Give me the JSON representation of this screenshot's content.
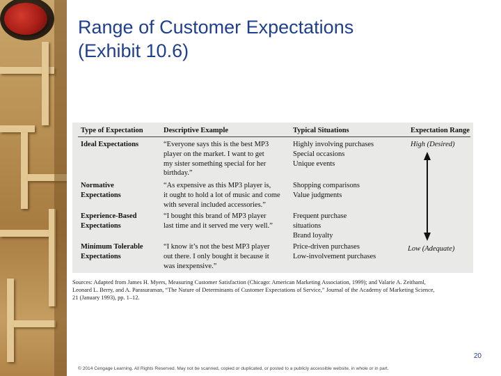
{
  "slide": {
    "title_line1": "Range of Customer Expectations",
    "title_line2": "(Exhibit 10.6)",
    "page_number": "20",
    "footer": "© 2014 Cengage Learning. All Rights Reserved. May not be scanned, copied or duplicated, or posted to a publicly accessible website, in whole or in part."
  },
  "exhibit": {
    "headers": [
      "Type of Expectation",
      "Descriptive Example",
      "Typical Situations",
      "Expectation Range"
    ],
    "rows": [
      {
        "type": [
          "Ideal Expectations"
        ],
        "example": [
          "“Everyone says this is the best MP3",
          "player on the market. I want to get",
          "my sister something special for her",
          "birthday.”"
        ],
        "situations": [
          "Highly involving purchases",
          "Special occasions",
          "Unique events"
        ]
      },
      {
        "type": [
          "Normative",
          "Expectations"
        ],
        "example": [
          "“As expensive as this MP3 player is,",
          "it ought to hold a lot of music and come",
          "with several included accessories.”"
        ],
        "situations": [
          "Shopping comparisons",
          "Value judgments"
        ]
      },
      {
        "type": [
          "Experience-Based",
          "Expectations"
        ],
        "example": [
          "“I bought this brand of MP3 player",
          "last time and it served me very well.”"
        ],
        "situations": [
          "Frequent purchase",
          "situations",
          "Brand loyalty"
        ]
      },
      {
        "type": [
          "Minimum Tolerable",
          "Expectations"
        ],
        "example": [
          "“I know it’s not the best MP3 player",
          "out there. I only bought it because it",
          "was inexpensive.”"
        ],
        "situations": [
          "Price-driven purchases",
          "Low-involvement purchases"
        ]
      }
    ],
    "range_high": "High (Desired)",
    "range_low": "Low (Adequate)",
    "sources": [
      "Sources: Adapted from James H. Myers, Measuring Customer Satisfaction (Chicago: American Marketing Association, 1999); and Valarie A. Zeithaml,",
      "Leonard L. Berry, and A. Parasuraman, “The Nature of Determinants of Customer Expectations of Service,” Journal of the Academy of Marketing Science,",
      "21 (January 1993), pp. 1–12."
    ]
  }
}
